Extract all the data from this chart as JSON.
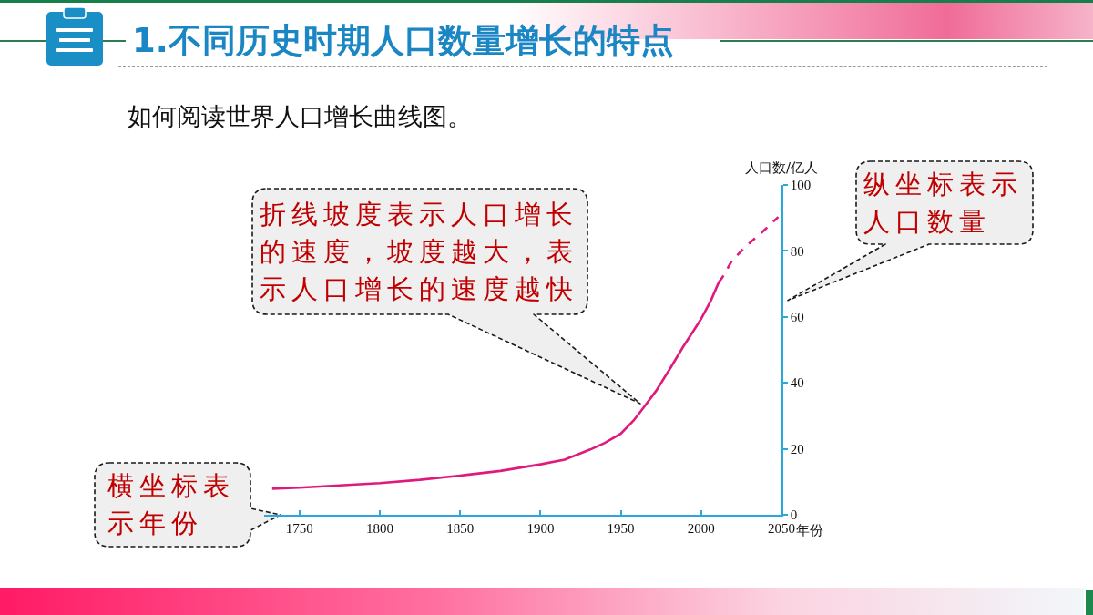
{
  "chart_data": {
    "type": "line",
    "title": "1.不同历史时期人口数量增长的特点",
    "subtitle": "如何阅读世界人口增长曲线图。",
    "xlabel": "年份",
    "ylabel": "人口数/亿人",
    "series": [
      {
        "color": "#e0197d",
        "line_style": "solid",
        "x": [
          1733,
          1750,
          1775,
          1800,
          1825,
          1850,
          1875,
          1900,
          1915,
          1931,
          1940,
          1950,
          1958,
          1964,
          1972,
          1981,
          1989,
          1997,
          2000,
          2006,
          2011
        ],
        "values": [
          7.9,
          8.2,
          8.9,
          9.6,
          10.6,
          11.9,
          13.3,
          15.3,
          16.7,
          19.8,
          21.8,
          24.6,
          28.6,
          32.4,
          37.6,
          44.6,
          51.1,
          57.1,
          59.4,
          64.9,
          70.5
        ]
      },
      {
        "color": "#e0197d",
        "line_style": "dashed",
        "x": [
          2011,
          2013,
          2019,
          2028,
          2038,
          2048
        ],
        "values": [
          70.5,
          71.8,
          76.9,
          81.5,
          85.7,
          90.3
        ]
      }
    ],
    "xlim": [
      1728,
      2050
    ],
    "xticks": [
      1750,
      1800,
      1850,
      1900,
      1950,
      2000,
      2050
    ],
    "ylim": [
      0,
      100
    ],
    "yticks": [
      0,
      20,
      40,
      60,
      80,
      100
    ],
    "annotations": [
      "折线坡度表示人口增长的速度，坡度越大，表示人口增长的速度越快",
      "纵坐标表示人口数量",
      "横坐标表示年份"
    ]
  }
}
